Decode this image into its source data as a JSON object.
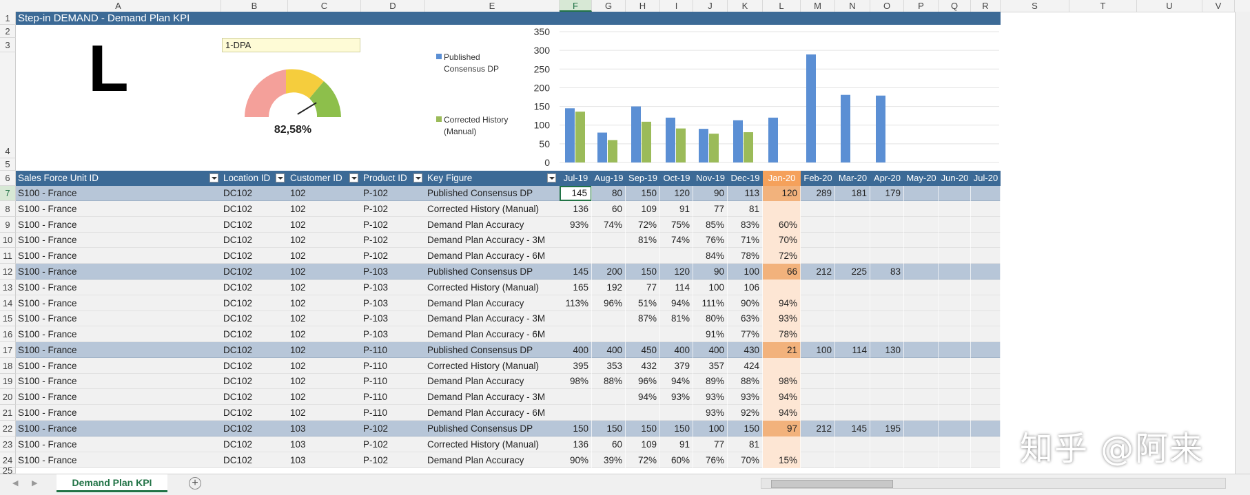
{
  "columns": [
    "A",
    "B",
    "C",
    "D",
    "E",
    "F",
    "G",
    "H",
    "I",
    "J",
    "K",
    "L",
    "M",
    "N",
    "O",
    "P",
    "Q",
    "R",
    "S",
    "T",
    "U",
    "V"
  ],
  "rows": [
    "1",
    "2",
    "3",
    "4",
    "5",
    "6",
    "7",
    "8",
    "9",
    "10",
    "11",
    "12",
    "13",
    "14",
    "15",
    "16",
    "17",
    "18",
    "19",
    "20",
    "21",
    "22",
    "23",
    "24",
    "25"
  ],
  "title": "Step-in DEMAND - Demand Plan KPI",
  "big_letter": "L",
  "kpi_selector": "1-DPA",
  "gauge": {
    "value_text": "82,58%",
    "value": 0.8258
  },
  "colors": {
    "header_blue": "#3c6a96",
    "series1": "#5b8fd4",
    "series2": "#9bbb59",
    "jan_highlight": "#f5a15b",
    "gauge_red": "#f4a09a",
    "gauge_yellow": "#f5cd3d",
    "gauge_green": "#8dbf4b"
  },
  "chart_data": {
    "type": "bar",
    "categories": [
      "Jul-19",
      "Aug-19",
      "Sep-19",
      "Oct-19",
      "Nov-19",
      "Dec-19",
      "Jan-20",
      "Feb-20",
      "Mar-20",
      "Apr-20",
      "May-20",
      "Jun-20",
      "Jul-20"
    ],
    "series": [
      {
        "name": "Published Consensus DP",
        "values": [
          145,
          80,
          150,
          120,
          90,
          113,
          120,
          289,
          181,
          179,
          null,
          null,
          null
        ]
      },
      {
        "name": "Corrected History (Manual)",
        "values": [
          136,
          60,
          109,
          91,
          77,
          81,
          null,
          null,
          null,
          null,
          null,
          null,
          null
        ]
      }
    ],
    "yticks": [
      0,
      50,
      100,
      150,
      200,
      250,
      300,
      350
    ],
    "ylim": [
      0,
      350
    ],
    "legend": [
      "Published Consensus DP",
      "Corrected History (Manual)"
    ]
  },
  "table": {
    "headers": [
      "Sales Force Unit ID",
      "Location ID",
      "Customer ID",
      "Product ID",
      "Key Figure"
    ],
    "months": [
      "Jul-19",
      "Aug-19",
      "Sep-19",
      "Oct-19",
      "Nov-19",
      "Dec-19",
      "Jan-20",
      "Feb-20",
      "Mar-20",
      "Apr-20",
      "May-20",
      "Jun-20",
      "Jul-20"
    ],
    "rows": [
      {
        "u": "S100 - France",
        "l": "DC102",
        "c": "102",
        "p": "P-102",
        "k": "Published Consensus DP",
        "v": [
          "145",
          "80",
          "150",
          "120",
          "90",
          "113",
          "120",
          "289",
          "181",
          "179",
          "",
          "",
          ""
        ],
        "main": true
      },
      {
        "u": "S100 - France",
        "l": "DC102",
        "c": "102",
        "p": "P-102",
        "k": "Corrected History (Manual)",
        "v": [
          "136",
          "60",
          "109",
          "91",
          "77",
          "81",
          "",
          "",
          "",
          "",
          "",
          "",
          ""
        ]
      },
      {
        "u": "S100 - France",
        "l": "DC102",
        "c": "102",
        "p": "P-102",
        "k": "Demand Plan Accuracy",
        "v": [
          "93%",
          "74%",
          "72%",
          "75%",
          "85%",
          "83%",
          "60%",
          "",
          "",
          "",
          "",
          "",
          ""
        ]
      },
      {
        "u": "S100 - France",
        "l": "DC102",
        "c": "102",
        "p": "P-102",
        "k": "Demand Plan Accuracy - 3M",
        "v": [
          "",
          "",
          "81%",
          "74%",
          "76%",
          "71%",
          "70%",
          "",
          "",
          "",
          "",
          "",
          ""
        ]
      },
      {
        "u": "S100 - France",
        "l": "DC102",
        "c": "102",
        "p": "P-102",
        "k": "Demand Plan Accuracy - 6M",
        "v": [
          "",
          "",
          "",
          "",
          "84%",
          "78%",
          "72%",
          "",
          "",
          "",
          "",
          "",
          ""
        ]
      },
      {
        "u": "S100 - France",
        "l": "DC102",
        "c": "102",
        "p": "P-103",
        "k": "Published Consensus DP",
        "v": [
          "145",
          "200",
          "150",
          "120",
          "90",
          "100",
          "66",
          "212",
          "225",
          "83",
          "",
          "",
          ""
        ],
        "main": true
      },
      {
        "u": "S100 - France",
        "l": "DC102",
        "c": "102",
        "p": "P-103",
        "k": "Corrected History (Manual)",
        "v": [
          "165",
          "192",
          "77",
          "114",
          "100",
          "106",
          "",
          "",
          "",
          "",
          "",
          "",
          ""
        ]
      },
      {
        "u": "S100 - France",
        "l": "DC102",
        "c": "102",
        "p": "P-103",
        "k": "Demand Plan Accuracy",
        "v": [
          "113%",
          "96%",
          "51%",
          "94%",
          "111%",
          "90%",
          "94%",
          "",
          "",
          "",
          "",
          "",
          ""
        ]
      },
      {
        "u": "S100 - France",
        "l": "DC102",
        "c": "102",
        "p": "P-103",
        "k": "Demand Plan Accuracy - 3M",
        "v": [
          "",
          "",
          "87%",
          "81%",
          "80%",
          "63%",
          "93%",
          "",
          "",
          "",
          "",
          "",
          ""
        ]
      },
      {
        "u": "S100 - France",
        "l": "DC102",
        "c": "102",
        "p": "P-103",
        "k": "Demand Plan Accuracy - 6M",
        "v": [
          "",
          "",
          "",
          "",
          "91%",
          "77%",
          "78%",
          "",
          "",
          "",
          "",
          "",
          ""
        ]
      },
      {
        "u": "S100 - France",
        "l": "DC102",
        "c": "102",
        "p": "P-110",
        "k": "Published Consensus DP",
        "v": [
          "400",
          "400",
          "450",
          "400",
          "400",
          "430",
          "21",
          "100",
          "114",
          "130",
          "",
          "",
          ""
        ],
        "main": true
      },
      {
        "u": "S100 - France",
        "l": "DC102",
        "c": "102",
        "p": "P-110",
        "k": "Corrected History (Manual)",
        "v": [
          "395",
          "353",
          "432",
          "379",
          "357",
          "424",
          "",
          "",
          "",
          "",
          "",
          "",
          ""
        ]
      },
      {
        "u": "S100 - France",
        "l": "DC102",
        "c": "102",
        "p": "P-110",
        "k": "Demand Plan Accuracy",
        "v": [
          "98%",
          "88%",
          "96%",
          "94%",
          "89%",
          "88%",
          "98%",
          "",
          "",
          "",
          "",
          "",
          ""
        ]
      },
      {
        "u": "S100 - France",
        "l": "DC102",
        "c": "102",
        "p": "P-110",
        "k": "Demand Plan Accuracy - 3M",
        "v": [
          "",
          "",
          "94%",
          "93%",
          "93%",
          "93%",
          "94%",
          "",
          "",
          "",
          "",
          "",
          ""
        ]
      },
      {
        "u": "S100 - France",
        "l": "DC102",
        "c": "102",
        "p": "P-110",
        "k": "Demand Plan Accuracy - 6M",
        "v": [
          "",
          "",
          "",
          "",
          "93%",
          "92%",
          "94%",
          "",
          "",
          "",
          "",
          "",
          ""
        ]
      },
      {
        "u": "S100 - France",
        "l": "DC102",
        "c": "103",
        "p": "P-102",
        "k": "Published Consensus DP",
        "v": [
          "150",
          "150",
          "150",
          "150",
          "100",
          "150",
          "97",
          "212",
          "145",
          "195",
          "",
          "",
          ""
        ],
        "main": true
      },
      {
        "u": "S100 - France",
        "l": "DC102",
        "c": "103",
        "p": "P-102",
        "k": "Corrected History (Manual)",
        "v": [
          "136",
          "60",
          "109",
          "91",
          "77",
          "81",
          "",
          "",
          "",
          "",
          "",
          "",
          ""
        ]
      },
      {
        "u": "S100 - France",
        "l": "DC102",
        "c": "103",
        "p": "P-102",
        "k": "Demand Plan Accuracy",
        "v": [
          "90%",
          "39%",
          "72%",
          "60%",
          "76%",
          "70%",
          "15%",
          "",
          "",
          "",
          "",
          "",
          ""
        ]
      }
    ]
  },
  "sheet_tab": "Demand Plan KPI",
  "add_sheet": "+",
  "watermark": "知乎 @阿来"
}
